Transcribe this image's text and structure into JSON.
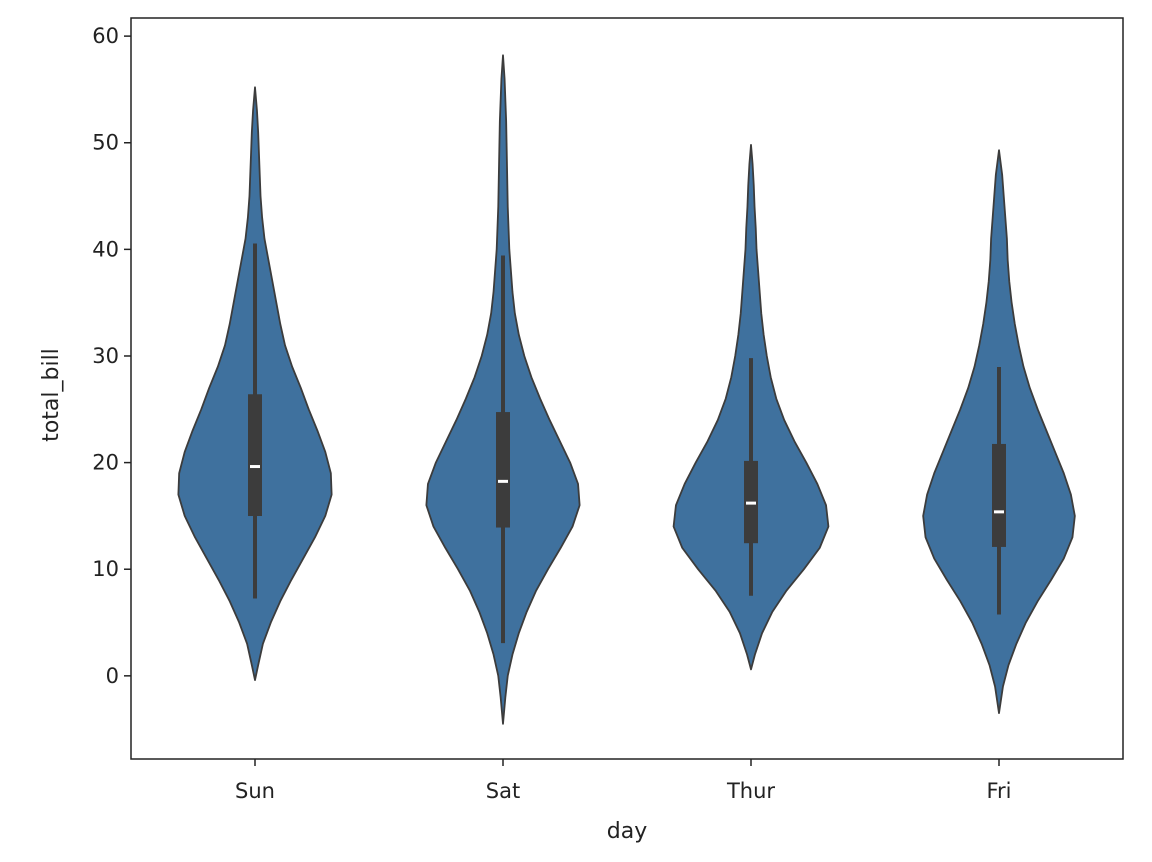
{
  "chart_data": {
    "type": "violin",
    "title": "",
    "xlabel": "day",
    "ylabel": "total_bill",
    "categories": [
      "Sun",
      "Sat",
      "Thur",
      "Fri"
    ],
    "y_ticks": [
      0,
      10,
      20,
      30,
      40,
      50,
      60
    ],
    "ylim": [
      -7.8,
      61.7
    ],
    "grid": false,
    "colors": {
      "violin_fill": "#3f719e",
      "outline": "#3c3c3c",
      "box": "#3c3c3c",
      "median": "#ffffff",
      "frame": "#222222"
    },
    "violins": [
      {
        "category": "Sun",
        "whisker_low": 7.25,
        "q1": 14.99,
        "median": 19.63,
        "q3": 26.41,
        "whisker_high": 40.55,
        "density": [
          [
            -0.4,
            0.0
          ],
          [
            1,
            0.04
          ],
          [
            3,
            0.1
          ],
          [
            5,
            0.2
          ],
          [
            7,
            0.32
          ],
          [
            9,
            0.46
          ],
          [
            11,
            0.61
          ],
          [
            13,
            0.76
          ],
          [
            15,
            0.89
          ],
          [
            17,
            0.97
          ],
          [
            19,
            0.96
          ],
          [
            21,
            0.89
          ],
          [
            23,
            0.79
          ],
          [
            25,
            0.68
          ],
          [
            27,
            0.58
          ],
          [
            29,
            0.47
          ],
          [
            31,
            0.38
          ],
          [
            33,
            0.32
          ],
          [
            35,
            0.27
          ],
          [
            37,
            0.22
          ],
          [
            39,
            0.17
          ],
          [
            41,
            0.12
          ],
          [
            43,
            0.09
          ],
          [
            45,
            0.07
          ],
          [
            47,
            0.06
          ],
          [
            49,
            0.05
          ],
          [
            51,
            0.04
          ],
          [
            53,
            0.025
          ],
          [
            55.2,
            0.0
          ]
        ]
      },
      {
        "category": "Sat",
        "whisker_low": 3.07,
        "q1": 13.91,
        "median": 18.24,
        "q3": 24.74,
        "whisker_high": 39.42,
        "density": [
          [
            -4.5,
            0.0
          ],
          [
            -2,
            0.03
          ],
          [
            0,
            0.06
          ],
          [
            2,
            0.12
          ],
          [
            4,
            0.2
          ],
          [
            6,
            0.3
          ],
          [
            8,
            0.42
          ],
          [
            10,
            0.57
          ],
          [
            12,
            0.73
          ],
          [
            14,
            0.88
          ],
          [
            16,
            0.97
          ],
          [
            18,
            0.95
          ],
          [
            20,
            0.85
          ],
          [
            22,
            0.72
          ],
          [
            24,
            0.59
          ],
          [
            26,
            0.47
          ],
          [
            28,
            0.36
          ],
          [
            30,
            0.27
          ],
          [
            32,
            0.2
          ],
          [
            34,
            0.15
          ],
          [
            36,
            0.12
          ],
          [
            38,
            0.1
          ],
          [
            40,
            0.08
          ],
          [
            42,
            0.07
          ],
          [
            44,
            0.06
          ],
          [
            46,
            0.055
          ],
          [
            48,
            0.05
          ],
          [
            50,
            0.045
          ],
          [
            52,
            0.04
          ],
          [
            54,
            0.03
          ],
          [
            56,
            0.02
          ],
          [
            58.2,
            0.0
          ]
        ]
      },
      {
        "category": "Thur",
        "whisker_low": 7.51,
        "q1": 12.44,
        "median": 16.2,
        "q3": 20.16,
        "whisker_high": 29.8,
        "density": [
          [
            0.6,
            0.0
          ],
          [
            2,
            0.05
          ],
          [
            4,
            0.14
          ],
          [
            6,
            0.27
          ],
          [
            8,
            0.45
          ],
          [
            10,
            0.67
          ],
          [
            12,
            0.87
          ],
          [
            14,
            0.98
          ],
          [
            16,
            0.95
          ],
          [
            18,
            0.84
          ],
          [
            20,
            0.7
          ],
          [
            22,
            0.55
          ],
          [
            24,
            0.42
          ],
          [
            26,
            0.32
          ],
          [
            28,
            0.25
          ],
          [
            30,
            0.2
          ],
          [
            32,
            0.16
          ],
          [
            34,
            0.13
          ],
          [
            36,
            0.11
          ],
          [
            38,
            0.09
          ],
          [
            40,
            0.07
          ],
          [
            42,
            0.06
          ],
          [
            44,
            0.045
          ],
          [
            46,
            0.035
          ],
          [
            48,
            0.02
          ],
          [
            49.8,
            0.0
          ]
        ]
      },
      {
        "category": "Fri",
        "whisker_low": 5.75,
        "q1": 12.09,
        "median": 15.38,
        "q3": 21.75,
        "whisker_high": 28.97,
        "density": [
          [
            -3.5,
            0.0
          ],
          [
            -1,
            0.05
          ],
          [
            1,
            0.12
          ],
          [
            3,
            0.22
          ],
          [
            5,
            0.34
          ],
          [
            7,
            0.49
          ],
          [
            9,
            0.66
          ],
          [
            11,
            0.82
          ],
          [
            13,
            0.93
          ],
          [
            15,
            0.96
          ],
          [
            17,
            0.91
          ],
          [
            19,
            0.82
          ],
          [
            21,
            0.71
          ],
          [
            23,
            0.6
          ],
          [
            25,
            0.49
          ],
          [
            27,
            0.39
          ],
          [
            29,
            0.31
          ],
          [
            31,
            0.25
          ],
          [
            33,
            0.2
          ],
          [
            35,
            0.16
          ],
          [
            37,
            0.13
          ],
          [
            39,
            0.11
          ],
          [
            41,
            0.1
          ],
          [
            43,
            0.08
          ],
          [
            45,
            0.06
          ],
          [
            47,
            0.04
          ],
          [
            49.3,
            0.0
          ]
        ]
      }
    ]
  }
}
